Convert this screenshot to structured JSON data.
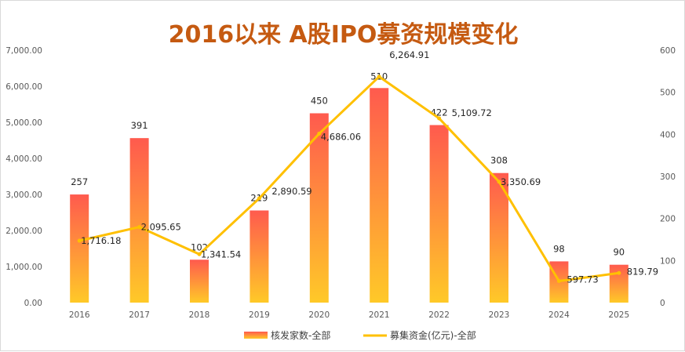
{
  "chart_data": {
    "type": "bar",
    "title": "2016以来 A股IPO募资规模变化",
    "categories": [
      "2016",
      "2017",
      "2018",
      "2019",
      "2020",
      "2021",
      "2022",
      "2023",
      "2024",
      "2025"
    ],
    "series": [
      {
        "name": "核发家数-全部",
        "type": "bar",
        "axis": "right",
        "values": [
          257,
          391,
          102,
          219,
          450,
          510,
          422,
          308,
          98,
          90
        ],
        "labels": [
          "257",
          "391",
          "102",
          "219",
          "450",
          "510",
          "422",
          "308",
          "98",
          "90"
        ],
        "color_top": "#ff5a4e",
        "color_bottom": "#ffc928"
      },
      {
        "name": "募集资金(亿元)-全部",
        "type": "line",
        "axis": "left",
        "values": [
          1716.18,
          2095.65,
          1341.54,
          2890.59,
          4686.06,
          6264.91,
          5109.72,
          3350.69,
          597.73,
          819.79
        ],
        "labels": [
          "1,716.18",
          "2,095.65",
          "1,341.54",
          "2,890.59",
          "4,686.06",
          "6,264.91",
          "5,109.72",
          "3,350.69",
          "597.73",
          "819.79"
        ],
        "color": "#ffc000"
      }
    ],
    "y_left": {
      "lim": [
        0,
        7000
      ],
      "ticks": [
        "0.00",
        "1,000.00",
        "2,000.00",
        "3,000.00",
        "4,000.00",
        "5,000.00",
        "6,000.00",
        "7,000.00"
      ]
    },
    "y_right": {
      "lim": [
        0,
        600
      ],
      "ticks": [
        "0",
        "100",
        "200",
        "300",
        "400",
        "500",
        "600"
      ]
    },
    "legend": "bottom",
    "grid": false
  }
}
